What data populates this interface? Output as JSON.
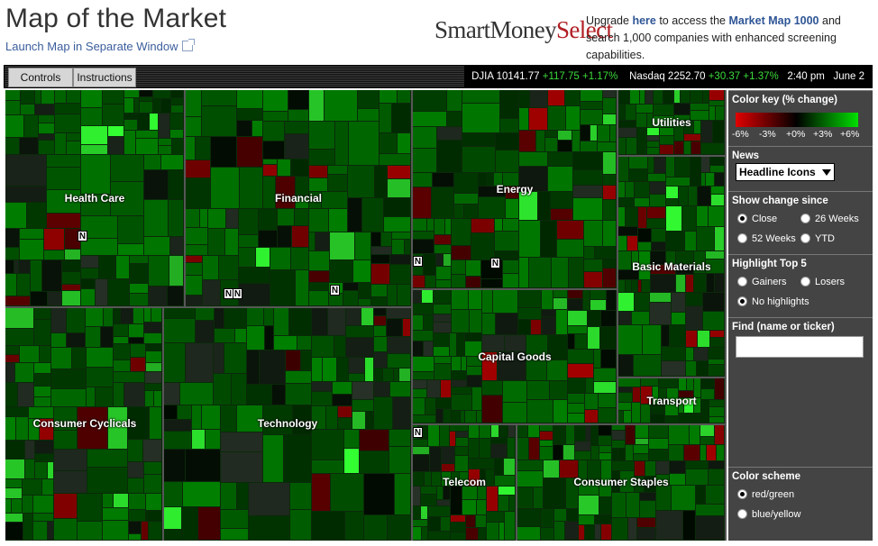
{
  "header": {
    "title": "Map of the Market",
    "launch_link": "Launch Map in Separate Window",
    "logo_part1": "SmartMoney",
    "logo_part2": "Select",
    "upgrade_pre": "Upgrade ",
    "upgrade_here": "here",
    "upgrade_mid": " to access the ",
    "upgrade_mm": "Market Map 1000",
    "upgrade_post": " and search 1,000 companies with enhanced screening capabilities."
  },
  "toolbar": {
    "controls_label": "Controls",
    "instructions_label": "Instructions",
    "djia_label": "DJIA 10141.77",
    "djia_change": "+117.75 +1.17%",
    "nasdaq_label": "Nasdaq 2252.70",
    "nasdaq_change": "+30.37 +1.37%",
    "time": "2:40 pm",
    "date": "June 2"
  },
  "sectors": [
    {
      "label": "Health Care"
    },
    {
      "label": "Financial"
    },
    {
      "label": "Energy"
    },
    {
      "label": "Utilities"
    },
    {
      "label": "Basic Materials"
    },
    {
      "label": "Consumer Cyclicals"
    },
    {
      "label": "Technology"
    },
    {
      "label": "Capital Goods"
    },
    {
      "label": "Transport"
    },
    {
      "label": "Telecom"
    },
    {
      "label": "Consumer Staples"
    }
  ],
  "news_marker": "N",
  "panel": {
    "color_key_title": "Color key (% change)",
    "color_key_ticks": [
      "-6%",
      "-3%",
      "+0%",
      "+3%",
      "+6%"
    ],
    "news_title": "News",
    "news_selected": "Headline Icons",
    "show_change_title": "Show change since",
    "show_change_options": [
      "Close",
      "26 Weeks",
      "52 Weeks",
      "YTD"
    ],
    "highlight_title": "Highlight Top 5",
    "highlight_options": [
      "Gainers",
      "Losers",
      "No highlights"
    ],
    "find_title": "Find (name or ticker)",
    "color_scheme_title": "Color scheme",
    "color_scheme_options": [
      "red/green",
      "blue/yellow"
    ]
  },
  "colors": {
    "gain": "#00c000",
    "loss": "#b00000",
    "neutral": "#000000",
    "link": "#2e5596",
    "brand_red": "#b01e23"
  }
}
